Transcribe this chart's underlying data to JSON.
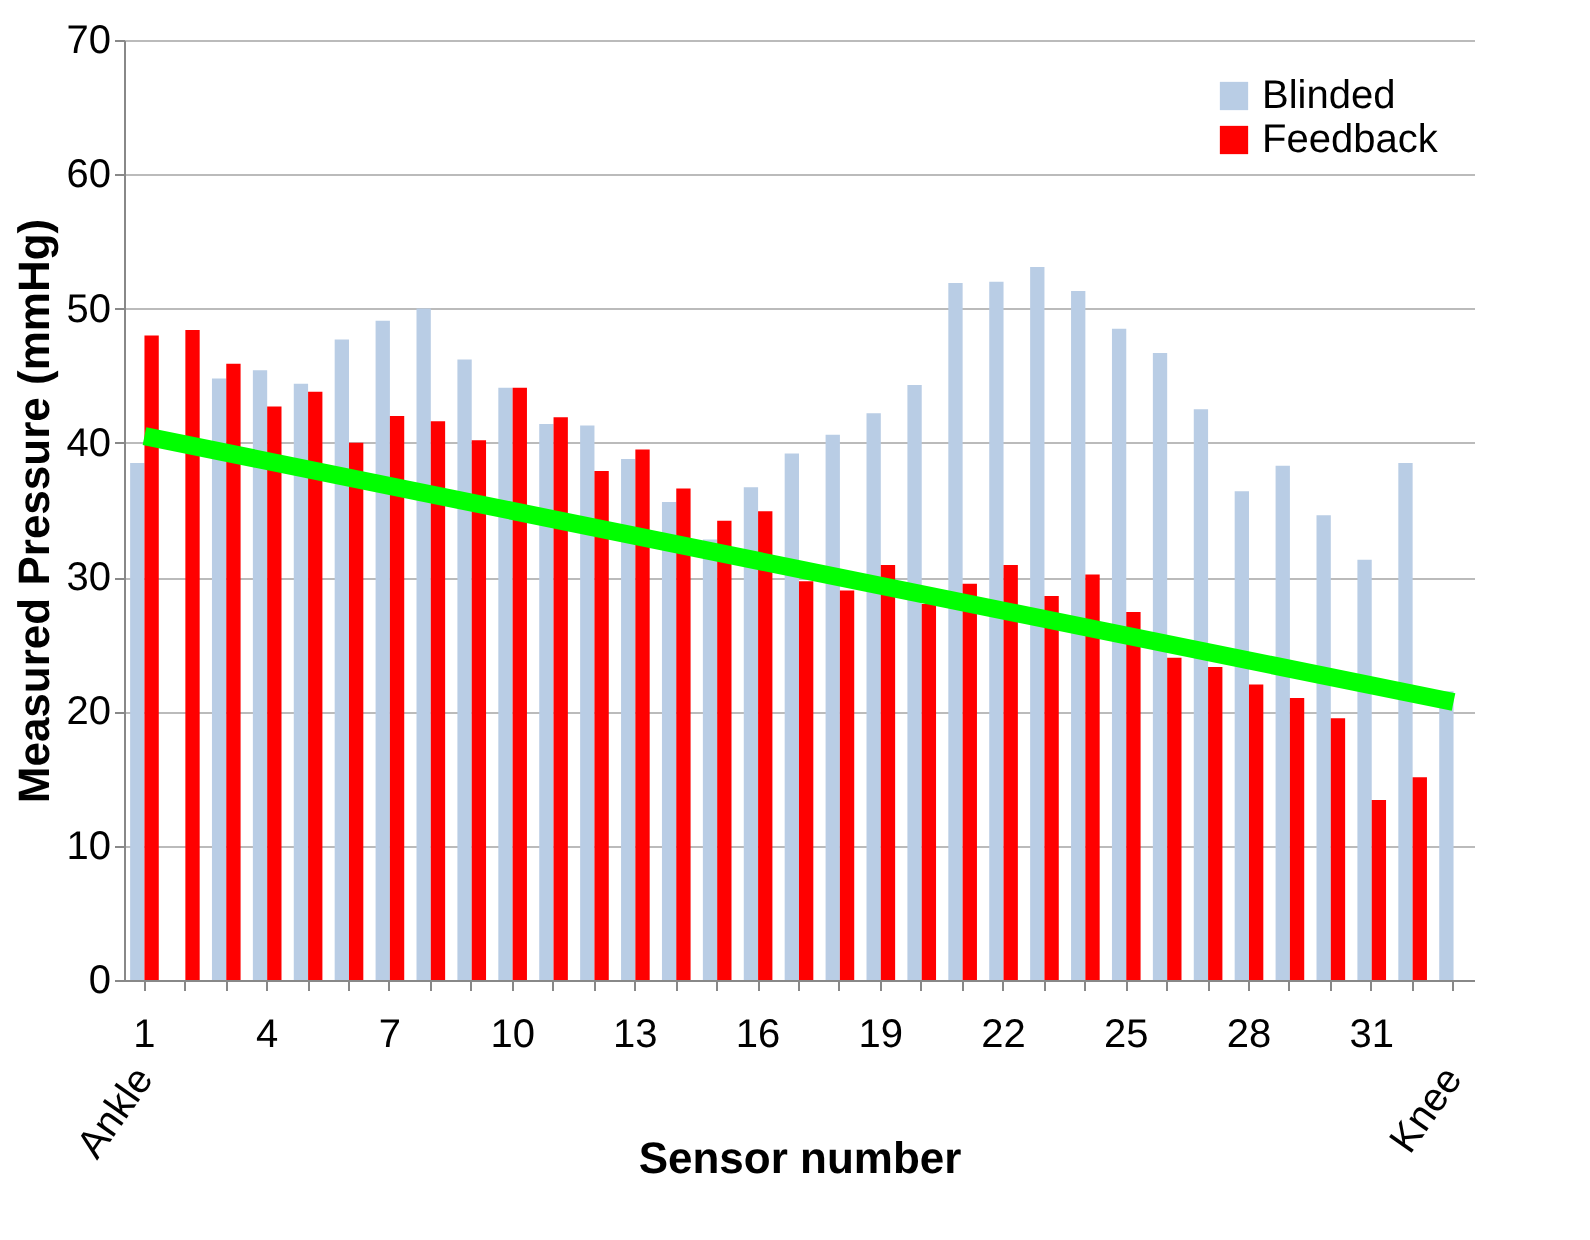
{
  "chart_data": {
    "type": "bar",
    "xlabel": "Sensor number",
    "ylabel": "Measured Pressure (mmHg)",
    "categories": [
      "1",
      null,
      null,
      "4",
      null,
      null,
      "7",
      null,
      null,
      "10",
      null,
      null,
      "13",
      null,
      null,
      "16",
      null,
      null,
      "19",
      null,
      null,
      "22",
      null,
      null,
      "25",
      null,
      null,
      "28",
      null,
      null,
      "31",
      null,
      null
    ],
    "series": [
      {
        "name": "Blinded",
        "color": "#b9cde5",
        "values": [
          38.5,
          null,
          44.8,
          45.4,
          44.4,
          47.7,
          49.1,
          50.0,
          46.2,
          44.1,
          41.4,
          41.3,
          38.8,
          35.6,
          32.8,
          36.7,
          39.2,
          40.6,
          42.2,
          44.3,
          51.9,
          52.0,
          53.1,
          51.3,
          48.5,
          46.7,
          42.5,
          36.4,
          38.3,
          34.6,
          31.3,
          38.5,
          21.5
        ]
      },
      {
        "name": "Feedback",
        "color": "#ff0000",
        "values": [
          48.0,
          48.4,
          45.9,
          42.7,
          43.8,
          40.0,
          42.0,
          41.6,
          40.2,
          44.1,
          41.9,
          37.9,
          39.5,
          36.6,
          34.2,
          34.9,
          29.7,
          29.0,
          30.9,
          28.0,
          29.5,
          30.9,
          28.6,
          30.2,
          27.4,
          24.0,
          23.3,
          22.0,
          21.0,
          19.5,
          13.4,
          15.1,
          null
        ]
      },
      {
        "type": "line",
        "color": "#00ff00",
        "values": [
          40.5,
          null,
          null,
          null,
          null,
          null,
          null,
          null,
          null,
          null,
          null,
          null,
          null,
          null,
          null,
          null,
          null,
          null,
          null,
          null,
          null,
          null,
          null,
          null,
          null,
          null,
          null,
          null,
          null,
          null,
          null,
          null,
          20.7
        ]
      }
    ],
    "ylim": [
      0,
      70
    ],
    "yticks": [
      0,
      10,
      20,
      30,
      40,
      50,
      60,
      70
    ],
    "grid": "y",
    "legend": "top right",
    "annotations": [
      "Ankle",
      "Knee"
    ]
  }
}
